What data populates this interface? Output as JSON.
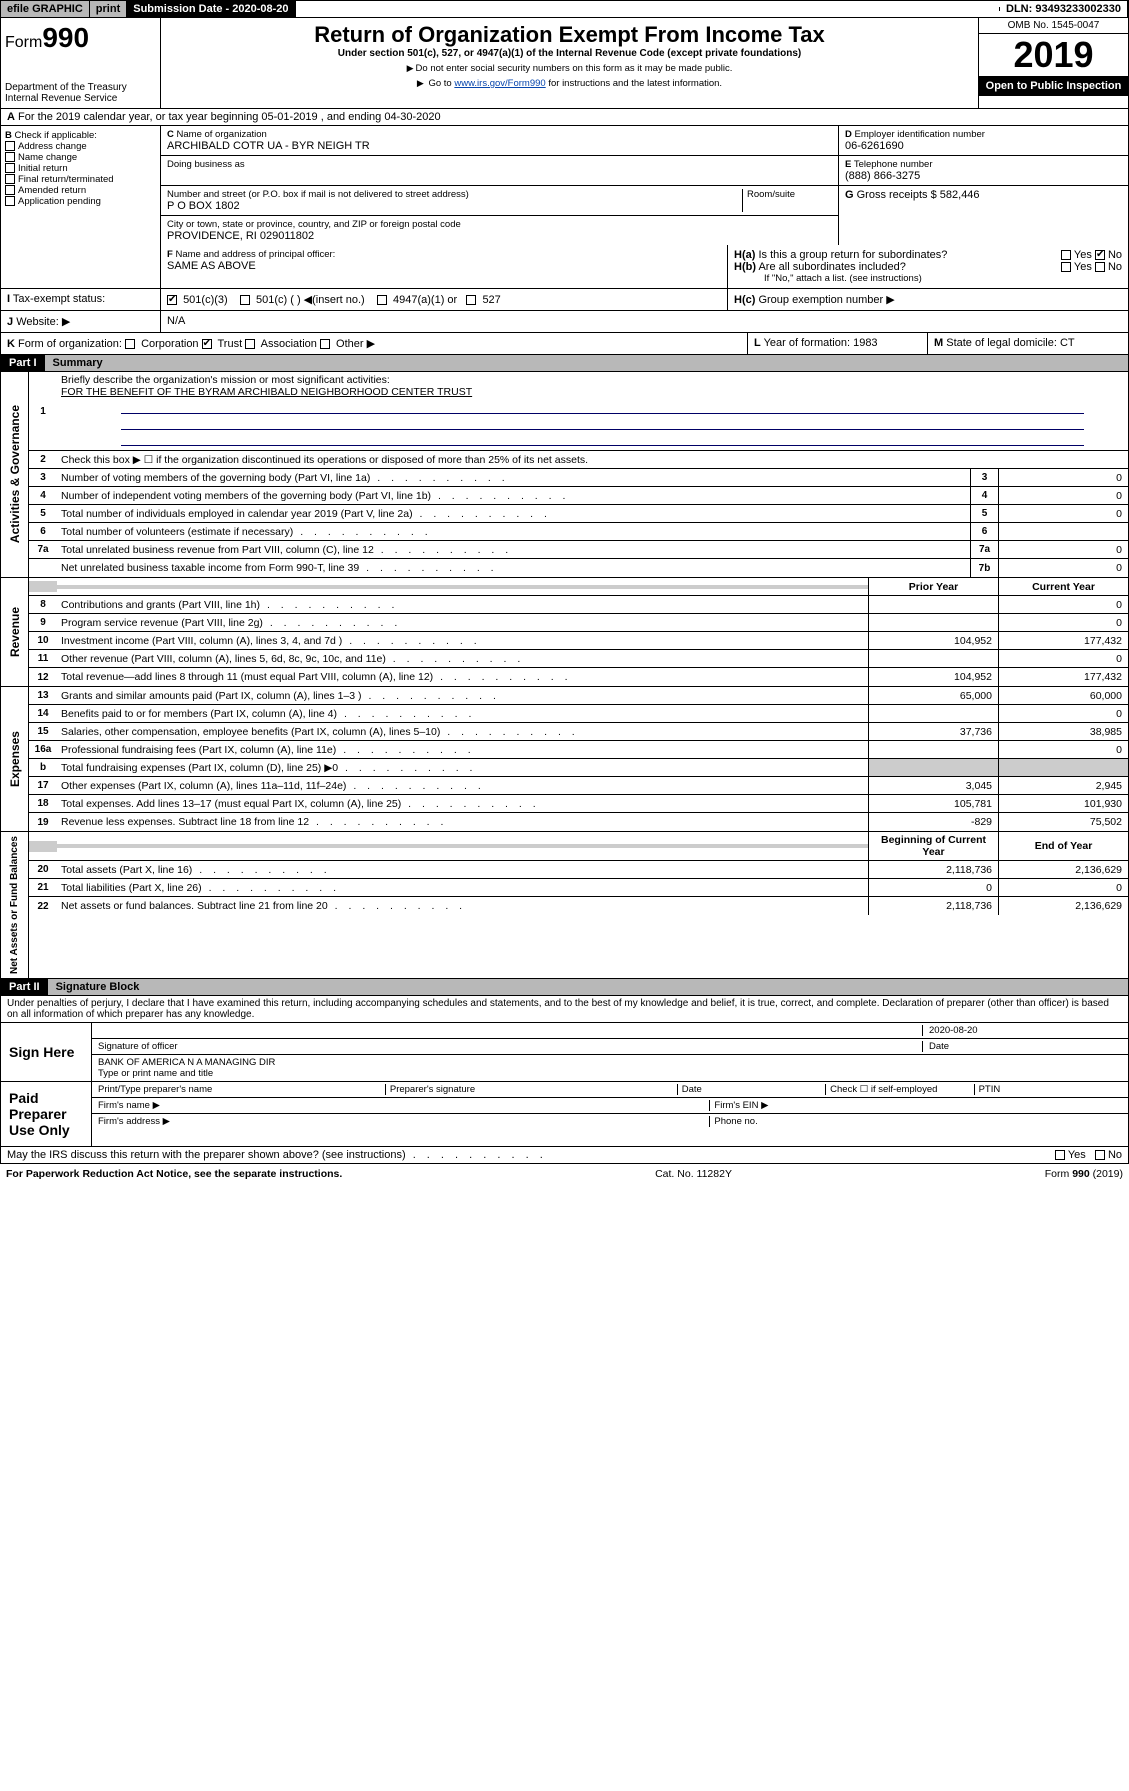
{
  "topbar": {
    "efile": "efile GRAPHIC",
    "print": "print",
    "subdate_lbl": "Submission Date - 2020-08-20",
    "dln": "DLN: 93493233002330"
  },
  "header": {
    "form_word": "Form",
    "form_num": "990",
    "dept": "Department of the Treasury",
    "irs": "Internal Revenue Service",
    "title": "Return of Organization Exempt From Income Tax",
    "subtitle": "Under section 501(c), 527, or 4947(a)(1) of the Internal Revenue Code (except private foundations)",
    "note1": "Do not enter social security numbers on this form as it may be made public.",
    "note2_a": "Go to ",
    "note2_link": "www.irs.gov/Form990",
    "note2_b": " for instructions and the latest information.",
    "omb": "OMB No. 1545-0047",
    "year": "2019",
    "open": "Open to Public Inspection"
  },
  "period": "For the 2019 calendar year, or tax year beginning 05-01-2019    , and ending 04-30-2020",
  "boxB": {
    "label": "Check if applicable:",
    "items": [
      "Address change",
      "Name change",
      "Initial return",
      "Final return/terminated",
      "Amended return",
      "Application pending"
    ]
  },
  "boxC": {
    "name_lbl": "Name of organization",
    "name": "ARCHIBALD COTR UA - BYR NEIGH TR",
    "dba_lbl": "Doing business as",
    "addr_lbl": "Number and street (or P.O. box if mail is not delivered to street address)",
    "room_lbl": "Room/suite",
    "addr": "P O BOX 1802",
    "city_lbl": "City or town, state or province, country, and ZIP or foreign postal code",
    "city": "PROVIDENCE, RI  029011802"
  },
  "boxD": {
    "lbl": "Employer identification number",
    "val": "06-6261690"
  },
  "boxE": {
    "lbl": "Telephone number",
    "val": "(888) 866-3275"
  },
  "boxG": {
    "lbl": "Gross receipts $",
    "val": "582,446"
  },
  "boxF": {
    "lbl": "Name and address of principal officer:",
    "val": "SAME AS ABOVE"
  },
  "boxH": {
    "a": "Is this a group return for subordinates?",
    "b": "Are all subordinates included?",
    "b_note": "If \"No,\" attach a list. (see instructions)",
    "c": "Group exemption number ▶"
  },
  "boxI": {
    "lbl": "Tax-exempt status:",
    "opts": [
      "501(c)(3)",
      "501(c) (  ) ◀(insert no.)",
      "4947(a)(1) or",
      "527"
    ]
  },
  "boxJ": {
    "lbl": "Website: ▶",
    "val": "N/A"
  },
  "boxK": {
    "lbl": "Form of organization:",
    "opts": [
      "Corporation",
      "Trust",
      "Association",
      "Other ▶"
    ]
  },
  "boxL": {
    "lbl": "Year of formation:",
    "val": "1983"
  },
  "boxM": {
    "lbl": "State of legal domicile:",
    "val": "CT"
  },
  "part1": {
    "hdr": "Part I",
    "title": "Summary",
    "l1": "Briefly describe the organization's mission or most significant activities:",
    "l1_val": "FOR THE BENEFIT OF THE BYRAM ARCHIBALD NEIGHBORHOOD CENTER TRUST",
    "l2": "Check this box ▶ ☐  if the organization discontinued its operations or disposed of more than 25% of its net assets.",
    "sideA": "Activities & Governance",
    "sideR": "Revenue",
    "sideE": "Expenses",
    "sideN": "Net Assets or Fund Balances",
    "rows_gov": [
      {
        "n": "3",
        "t": "Number of voting members of the governing body (Part VI, line 1a)",
        "b": "3",
        "v": "0"
      },
      {
        "n": "4",
        "t": "Number of independent voting members of the governing body (Part VI, line 1b)",
        "b": "4",
        "v": "0"
      },
      {
        "n": "5",
        "t": "Total number of individuals employed in calendar year 2019 (Part V, line 2a)",
        "b": "5",
        "v": "0"
      },
      {
        "n": "6",
        "t": "Total number of volunteers (estimate if necessary)",
        "b": "6",
        "v": ""
      },
      {
        "n": "7a",
        "t": "Total unrelated business revenue from Part VIII, column (C), line 12",
        "b": "7a",
        "v": "0"
      },
      {
        "n": "",
        "t": "Net unrelated business taxable income from Form 990-T, line 39",
        "b": "7b",
        "v": "0"
      }
    ],
    "col_py": "Prior Year",
    "col_cy": "Current Year",
    "rows_rev": [
      {
        "n": "8",
        "t": "Contributions and grants (Part VIII, line 1h)",
        "p": "",
        "c": "0"
      },
      {
        "n": "9",
        "t": "Program service revenue (Part VIII, line 2g)",
        "p": "",
        "c": "0"
      },
      {
        "n": "10",
        "t": "Investment income (Part VIII, column (A), lines 3, 4, and 7d )",
        "p": "104,952",
        "c": "177,432"
      },
      {
        "n": "11",
        "t": "Other revenue (Part VIII, column (A), lines 5, 6d, 8c, 9c, 10c, and 11e)",
        "p": "",
        "c": "0"
      },
      {
        "n": "12",
        "t": "Total revenue—add lines 8 through 11 (must equal Part VIII, column (A), line 12)",
        "p": "104,952",
        "c": "177,432"
      }
    ],
    "rows_exp": [
      {
        "n": "13",
        "t": "Grants and similar amounts paid (Part IX, column (A), lines 1–3 )",
        "p": "65,000",
        "c": "60,000"
      },
      {
        "n": "14",
        "t": "Benefits paid to or for members (Part IX, column (A), line 4)",
        "p": "",
        "c": "0"
      },
      {
        "n": "15",
        "t": "Salaries, other compensation, employee benefits (Part IX, column (A), lines 5–10)",
        "p": "37,736",
        "c": "38,985"
      },
      {
        "n": "16a",
        "t": "Professional fundraising fees (Part IX, column (A), line 11e)",
        "p": "",
        "c": "0"
      },
      {
        "n": "b",
        "t": "Total fundraising expenses (Part IX, column (D), line 25) ▶0",
        "p": "grey",
        "c": "grey"
      },
      {
        "n": "17",
        "t": "Other expenses (Part IX, column (A), lines 11a–11d, 11f–24e)",
        "p": "3,045",
        "c": "2,945"
      },
      {
        "n": "18",
        "t": "Total expenses. Add lines 13–17 (must equal Part IX, column (A), line 25)",
        "p": "105,781",
        "c": "101,930"
      },
      {
        "n": "19",
        "t": "Revenue less expenses. Subtract line 18 from line 12",
        "p": "-829",
        "c": "75,502"
      }
    ],
    "col_bcy": "Beginning of Current Year",
    "col_eoy": "End of Year",
    "rows_net": [
      {
        "n": "20",
        "t": "Total assets (Part X, line 16)",
        "p": "2,118,736",
        "c": "2,136,629"
      },
      {
        "n": "21",
        "t": "Total liabilities (Part X, line 26)",
        "p": "0",
        "c": "0"
      },
      {
        "n": "22",
        "t": "Net assets or fund balances. Subtract line 21 from line 20",
        "p": "2,118,736",
        "c": "2,136,629"
      }
    ]
  },
  "part2": {
    "hdr": "Part II",
    "title": "Signature Block",
    "perjury": "Under penalties of perjury, I declare that I have examined this return, including accompanying schedules and statements, and to the best of my knowledge and belief, it is true, correct, and complete. Declaration of preparer (other than officer) is based on all information of which preparer has any knowledge.",
    "sign_here": "Sign Here",
    "sig_officer": "Signature of officer",
    "date": "Date",
    "date_val": "2020-08-20",
    "name_title": "BANK OF AMERICA N A  MANAGING DIR",
    "name_lbl": "Type or print name and title",
    "paid": "Paid Preparer Use Only",
    "pp_name": "Print/Type preparer's name",
    "pp_sig": "Preparer's signature",
    "pp_date": "Date",
    "pp_check": "Check ☐ if self-employed",
    "ptin": "PTIN",
    "firm_name": "Firm's name  ▶",
    "firm_ein": "Firm's EIN ▶",
    "firm_addr": "Firm's address ▶",
    "phone": "Phone no.",
    "discuss": "May the IRS discuss this return with the preparer shown above? (see instructions)"
  },
  "footer": {
    "pra": "For Paperwork Reduction Act Notice, see the separate instructions.",
    "cat": "Cat. No. 11282Y",
    "form": "Form 990 (2019)"
  }
}
